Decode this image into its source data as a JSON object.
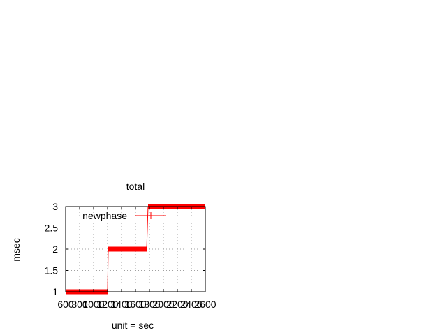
{
  "chart_data": {
    "type": "line",
    "title": "total",
    "xlabel": "unit = sec",
    "ylabel": "msec",
    "xlim": [
      600,
      2600
    ],
    "ylim": [
      1,
      3
    ],
    "x_ticks": [
      "600",
      "800",
      "1000",
      "1200",
      "1400",
      "1600",
      "1800",
      "2000",
      "2200",
      "2400",
      "2600"
    ],
    "y_ticks": [
      "1",
      "1.5",
      "2",
      "2.5",
      "3"
    ],
    "grid": true,
    "legend_position": "top-left",
    "series": [
      {
        "name": "newphase",
        "color": "#ff0000",
        "points": [
          {
            "x": 600,
            "y": 1
          },
          {
            "x": 1200,
            "y": 1
          },
          {
            "x": 1210,
            "y": 2
          },
          {
            "x": 1760,
            "y": 2
          },
          {
            "x": 1780,
            "y": 3
          },
          {
            "x": 2600,
            "y": 3
          }
        ]
      }
    ]
  }
}
